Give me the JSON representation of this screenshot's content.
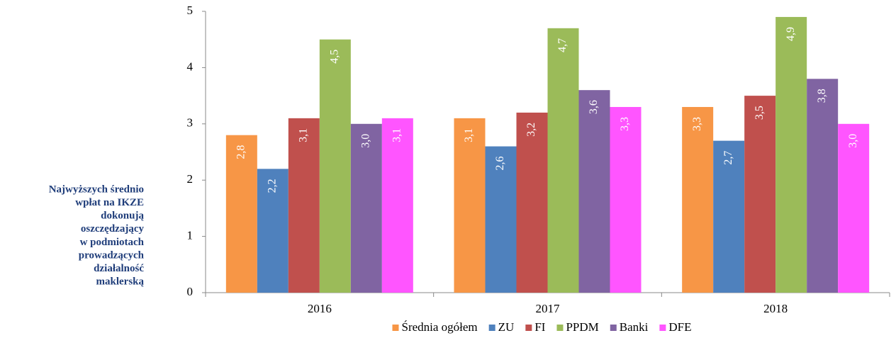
{
  "side_note": {
    "lines": [
      "Najwyższych średnio",
      "wpłat na IKZE",
      "dokonują",
      "oszczędzający",
      "w podmiotach",
      "prowadzących",
      "działalność",
      "maklerską"
    ]
  },
  "chart_data": {
    "type": "bar",
    "categories": [
      "2016",
      "2017",
      "2018"
    ],
    "series": [
      {
        "name": "Średnia ogółem",
        "color": "#f79646",
        "values": [
          2.8,
          3.1,
          3.3
        ],
        "value_labels": [
          "2,8",
          "3,1",
          "3,3"
        ]
      },
      {
        "name": "ZU",
        "color": "#4f81bd",
        "values": [
          2.2,
          2.6,
          2.7
        ],
        "value_labels": [
          "2,2",
          "2,6",
          "2,7"
        ]
      },
      {
        "name": "FI",
        "color": "#c0504d",
        "values": [
          3.1,
          3.2,
          3.5
        ],
        "value_labels": [
          "3,1",
          "3,2",
          "3,5"
        ]
      },
      {
        "name": "PPDM",
        "color": "#9bbb59",
        "values": [
          4.5,
          4.7,
          4.9
        ],
        "value_labels": [
          "4,5",
          "4,7",
          "4,9"
        ]
      },
      {
        "name": "Banki",
        "color": "#8064a2",
        "values": [
          3.0,
          3.6,
          3.8
        ],
        "value_labels": [
          "3,0",
          "3,6",
          "3,8"
        ]
      },
      {
        "name": "DFE",
        "color": "#ff55ff",
        "values": [
          3.1,
          3.3,
          3.0
        ],
        "value_labels": [
          "3,1",
          "3,3",
          "3,0"
        ]
      }
    ],
    "ylim": [
      0,
      5
    ],
    "yticks": [
      0,
      1,
      2,
      3,
      4,
      5
    ],
    "grid": false,
    "legend": "bottom"
  }
}
